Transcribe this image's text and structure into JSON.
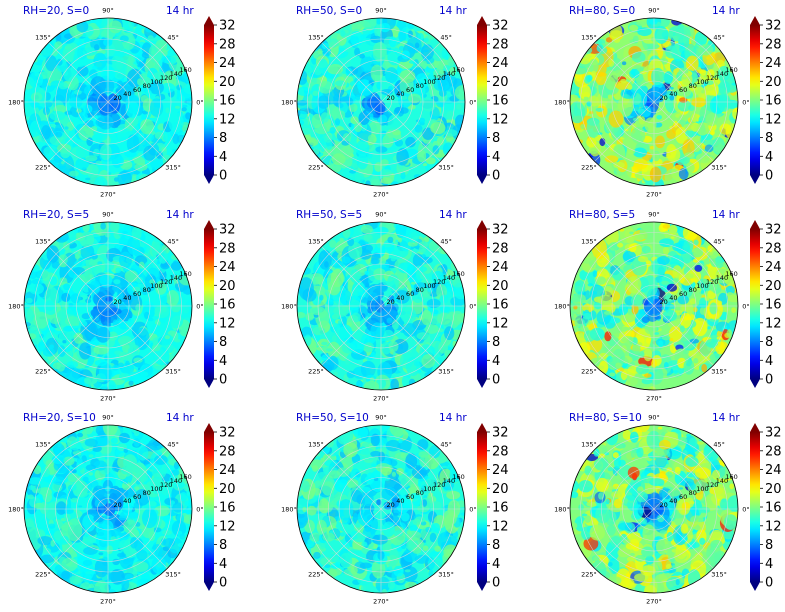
{
  "colors": {
    "panel_title": "#0000cc",
    "grid": "#d9d9d9",
    "outline": "#000000",
    "colormap": "jet"
  },
  "chart_data": {
    "type": "heatmap",
    "projection": "polar",
    "layout": {
      "rows": 3,
      "cols": 3
    },
    "time_label": "14 hr",
    "angle_ticks": [
      "90°",
      "45°",
      "0°",
      "315°",
      "270°",
      "225°",
      "180°",
      "135°"
    ],
    "radial_ticks": [
      "20",
      "40",
      "60",
      "80",
      "100",
      "120",
      "140",
      "160"
    ],
    "radial_max": 160,
    "colorbar": {
      "ticks": [
        "0",
        "4",
        "8",
        "12",
        "16",
        "20",
        "24",
        "28",
        "32"
      ],
      "range": [
        0,
        32
      ],
      "extend": "both"
    },
    "panels": [
      {
        "title": "RH=20, S=0",
        "rh": 20,
        "s": 0,
        "center_value": 5,
        "field_value": 12.5,
        "variability": 1.6
      },
      {
        "title": "RH=50, S=0",
        "rh": 50,
        "s": 0,
        "center_value": 5,
        "field_value": 13.0,
        "variability": 2.0
      },
      {
        "title": "RH=80, S=0",
        "rh": 80,
        "s": 0,
        "center_value": 4,
        "field_value": 16.5,
        "variability": 3.2
      },
      {
        "title": "RH=20, S=5",
        "rh": 20,
        "s": 5,
        "center_value": 5,
        "field_value": 12.5,
        "variability": 1.6
      },
      {
        "title": "RH=50, S=5",
        "rh": 50,
        "s": 5,
        "center_value": 5,
        "field_value": 13.0,
        "variability": 2.0
      },
      {
        "title": "RH=80, S=5",
        "rh": 80,
        "s": 5,
        "center_value": 4,
        "field_value": 16.0,
        "variability": 3.2
      },
      {
        "title": "RH=20, S=10",
        "rh": 20,
        "s": 10,
        "center_value": 5,
        "field_value": 12.5,
        "variability": 1.6
      },
      {
        "title": "RH=50, S=10",
        "rh": 50,
        "s": 10,
        "center_value": 5,
        "field_value": 13.0,
        "variability": 2.0
      },
      {
        "title": "RH=80, S=10",
        "rh": 80,
        "s": 10,
        "center_value": 4,
        "field_value": 16.0,
        "variability": 3.2
      }
    ]
  }
}
